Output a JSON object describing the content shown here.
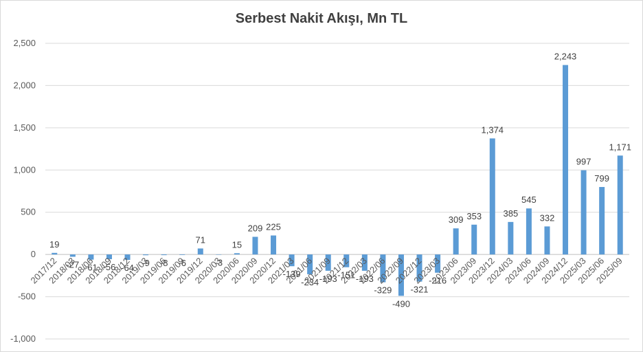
{
  "chart_data": {
    "type": "bar",
    "title": "Serbest Nakit Akışı, Mn TL",
    "xlabel": "",
    "ylabel": "",
    "ylim": [
      -1000,
      2500
    ],
    "yticks": [
      -1000,
      -500,
      0,
      500,
      1000,
      1500,
      2000,
      2500
    ],
    "ytick_labels": [
      "-1,000",
      "-500",
      "0",
      "500",
      "1,000",
      "1,500",
      "2,000",
      "2,500"
    ],
    "grid": true,
    "legend": "none",
    "bar_color": "#5b9bd5",
    "categories": [
      "2017/12",
      "2018/03",
      "2018/06",
      "2018/09",
      "2018/12",
      "2019/03",
      "2019/06",
      "2019/09",
      "2019/12",
      "2020/03",
      "2020/06",
      "2020/09",
      "2020/12",
      "2021/03",
      "2021/06",
      "2021/09",
      "2021/12",
      "2022/03",
      "2022/06",
      "2022/09",
      "2022/12",
      "2023/03",
      "2023/06",
      "2023/09",
      "2023/12",
      "2024/03",
      "2024/06",
      "2024/09",
      "2024/12",
      "2025/03",
      "2025/06",
      "2025/09"
    ],
    "values": [
      19,
      -27,
      -61,
      -56,
      -64,
      -9,
      -8,
      -6,
      71,
      -3,
      15,
      209,
      225,
      -139,
      -234,
      -193,
      -151,
      -193,
      -329,
      -490,
      -321,
      -216,
      309,
      353,
      1374,
      385,
      545,
      332,
      2243,
      997,
      799,
      1171
    ],
    "value_labels": [
      "19",
      "-27",
      "-61",
      "-56",
      "-64",
      "-9",
      "-8",
      "-6",
      "71",
      "-3",
      "15",
      "209",
      "225",
      "-139",
      "-234",
      "-193",
      "-151",
      "-193",
      "-329",
      "-490",
      "-321",
      "-216",
      "309",
      "353",
      "1,374",
      "385",
      "545",
      "332",
      "2,243",
      "997",
      "799",
      "1,171"
    ]
  }
}
